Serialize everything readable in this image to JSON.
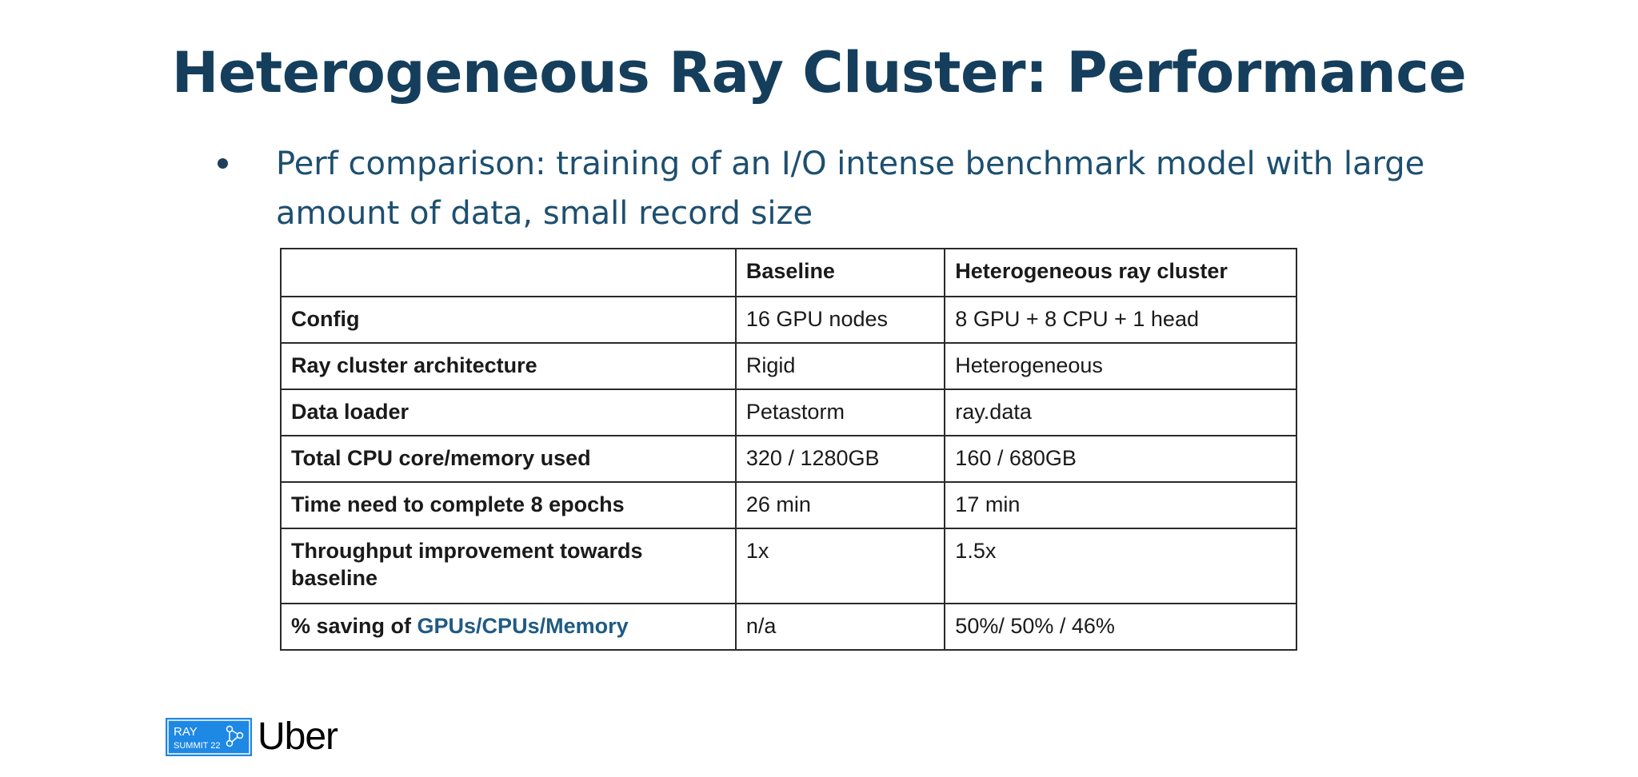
{
  "slide": {
    "title": "Heterogeneous Ray Cluster: Performance",
    "bullet": "Perf comparison: training of an I/O intense benchmark model with large amount of data, small record size"
  },
  "table": {
    "headers": [
      "",
      "Baseline",
      "Heterogeneous ray cluster"
    ],
    "rows": [
      {
        "label": "Config",
        "baseline": "16 GPU nodes",
        "hetero": "8 GPU + 8 CPU + 1 head"
      },
      {
        "label": "Ray cluster architecture",
        "baseline": "Rigid",
        "hetero": "Heterogeneous"
      },
      {
        "label": "Data loader",
        "baseline": "Petastorm",
        "hetero": "ray.data"
      },
      {
        "label": "Total CPU core/memory used",
        "baseline": "320 / 1280GB",
        "hetero": "160 / 680GB"
      },
      {
        "label": "Time need to complete 8 epochs",
        "baseline": "26 min",
        "hetero": "17 min"
      },
      {
        "label": "Throughput improvement towards baseline",
        "baseline": "1x",
        "hetero": "1.5x"
      },
      {
        "label_prefix": "% saving of ",
        "label_highlight": "GPUs/CPUs/Memory",
        "baseline": "n/a",
        "hetero": "50%/ 50% / 46%"
      }
    ]
  },
  "footer": {
    "badge_line1": "RAY",
    "badge_line2": "SUMMIT 22",
    "brand": "Uber",
    "badge_color": "#1e88e5"
  }
}
